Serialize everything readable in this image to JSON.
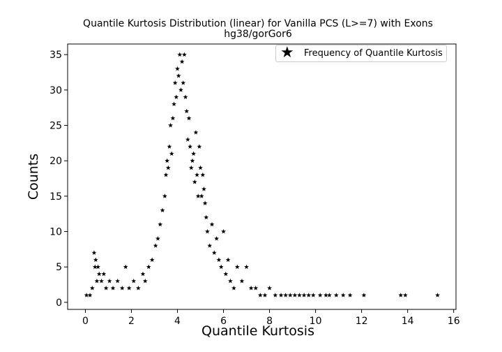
{
  "chart_data": {
    "type": "scatter",
    "title": "Quantile Kurtosis Distribution (linear) for Vanilla PCS (L>=7) with Exons",
    "subtitle": "hg38/gorGor6",
    "xlabel": "Quantile Kurtosis",
    "ylabel": "Counts",
    "xlim": [
      -0.77,
      16.1
    ],
    "ylim": [
      -1.0,
      36.5
    ],
    "xticks": [
      0,
      2,
      4,
      6,
      8,
      10,
      12,
      14,
      16
    ],
    "yticks": [
      0,
      5,
      10,
      15,
      20,
      25,
      30,
      35
    ],
    "grid": false,
    "legend_position": "top-right",
    "marker": "star",
    "color": "#000000",
    "series": [
      {
        "name": "Frequency of Quantile Kurtosis",
        "x": [
          0.05,
          0.2,
          0.3,
          0.38,
          0.42,
          0.45,
          0.5,
          0.55,
          0.6,
          0.7,
          0.8,
          0.9,
          1.05,
          1.2,
          1.4,
          1.6,
          1.75,
          1.9,
          2.1,
          2.3,
          2.5,
          2.6,
          2.75,
          2.9,
          3.05,
          3.15,
          3.25,
          3.35,
          3.45,
          3.5,
          3.55,
          3.6,
          3.65,
          3.7,
          3.75,
          3.8,
          3.85,
          3.9,
          3.95,
          4.0,
          4.05,
          4.1,
          4.15,
          4.2,
          4.25,
          4.3,
          4.35,
          4.4,
          4.45,
          4.5,
          4.55,
          4.6,
          4.65,
          4.7,
          4.75,
          4.8,
          4.85,
          4.9,
          4.95,
          5.0,
          5.05,
          5.1,
          5.15,
          5.2,
          5.25,
          5.3,
          5.4,
          5.5,
          5.6,
          5.7,
          5.8,
          5.9,
          6.0,
          6.1,
          6.2,
          6.3,
          6.45,
          6.6,
          6.8,
          7.0,
          7.2,
          7.4,
          7.6,
          7.8,
          8.0,
          8.25,
          8.5,
          8.7,
          8.9,
          9.1,
          9.3,
          9.5,
          9.7,
          9.9,
          10.2,
          10.45,
          10.6,
          10.9,
          11.2,
          11.5,
          12.1,
          13.7,
          13.9,
          15.3
        ],
        "y": [
          1,
          1,
          2,
          7,
          5,
          6,
          3,
          5,
          4,
          3,
          4,
          2,
          3,
          2,
          3,
          2,
          5,
          2,
          3,
          2,
          4,
          3,
          5,
          6,
          8,
          9,
          11,
          13,
          15,
          18,
          20,
          19,
          22,
          25,
          21,
          26,
          28,
          31,
          29,
          33,
          32,
          35,
          30,
          34,
          31,
          35,
          29,
          27,
          23,
          26,
          22,
          19,
          20,
          21,
          17,
          24,
          18,
          15,
          22,
          19,
          15,
          18,
          16,
          14,
          12,
          10,
          8,
          11,
          7,
          9,
          6,
          5,
          10,
          4,
          6,
          3,
          2,
          5,
          3,
          5,
          2,
          2,
          1,
          1,
          2,
          1,
          1,
          1,
          1,
          1,
          1,
          1,
          1,
          1,
          1,
          1,
          1,
          1,
          1,
          1,
          1,
          1,
          1,
          1
        ]
      }
    ]
  }
}
